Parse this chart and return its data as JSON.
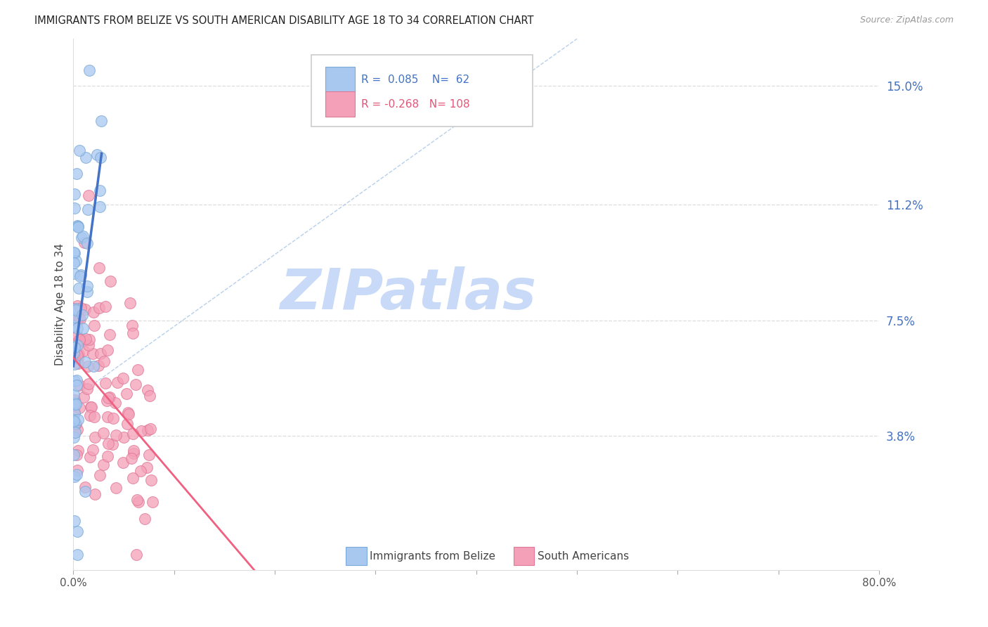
{
  "title": "IMMIGRANTS FROM BELIZE VS SOUTH AMERICAN DISABILITY AGE 18 TO 34 CORRELATION CHART",
  "source": "Source: ZipAtlas.com",
  "ylabel": "Disability Age 18 to 34",
  "y_ticks_right": [
    0.038,
    0.075,
    0.112,
    0.15
  ],
  "y_tick_labels_right": [
    "3.8%",
    "7.5%",
    "11.2%",
    "15.0%"
  ],
  "belize_R": 0.085,
  "belize_N": 62,
  "sa_R": -0.268,
  "sa_N": 108,
  "belize_color": "#a8c8f0",
  "belize_edge_color": "#7aaad8",
  "belize_line_color": "#4472c4",
  "sa_color": "#f4a0b8",
  "sa_edge_color": "#e07898",
  "sa_line_color": "#f06080",
  "dash_line_color": "#aac8e8",
  "legend_label_belize": "Immigrants from Belize",
  "legend_label_sa": "South Americans",
  "watermark": "ZIPatlas",
  "watermark_color_zip": "#c8daf8",
  "watermark_color_atlas": "#c0d4f0",
  "background_color": "#ffffff",
  "grid_color": "#dddddd",
  "title_fontsize": 11,
  "xlim": [
    0.0,
    0.8
  ],
  "ylim": [
    -0.005,
    0.165
  ],
  "x_ticks": [
    0.0,
    0.1,
    0.2,
    0.3,
    0.4,
    0.5,
    0.6,
    0.7,
    0.8
  ],
  "x_tick_labels": [
    "0.0%",
    "",
    "",
    "",
    "",
    "",
    "",
    "",
    "80.0%"
  ]
}
